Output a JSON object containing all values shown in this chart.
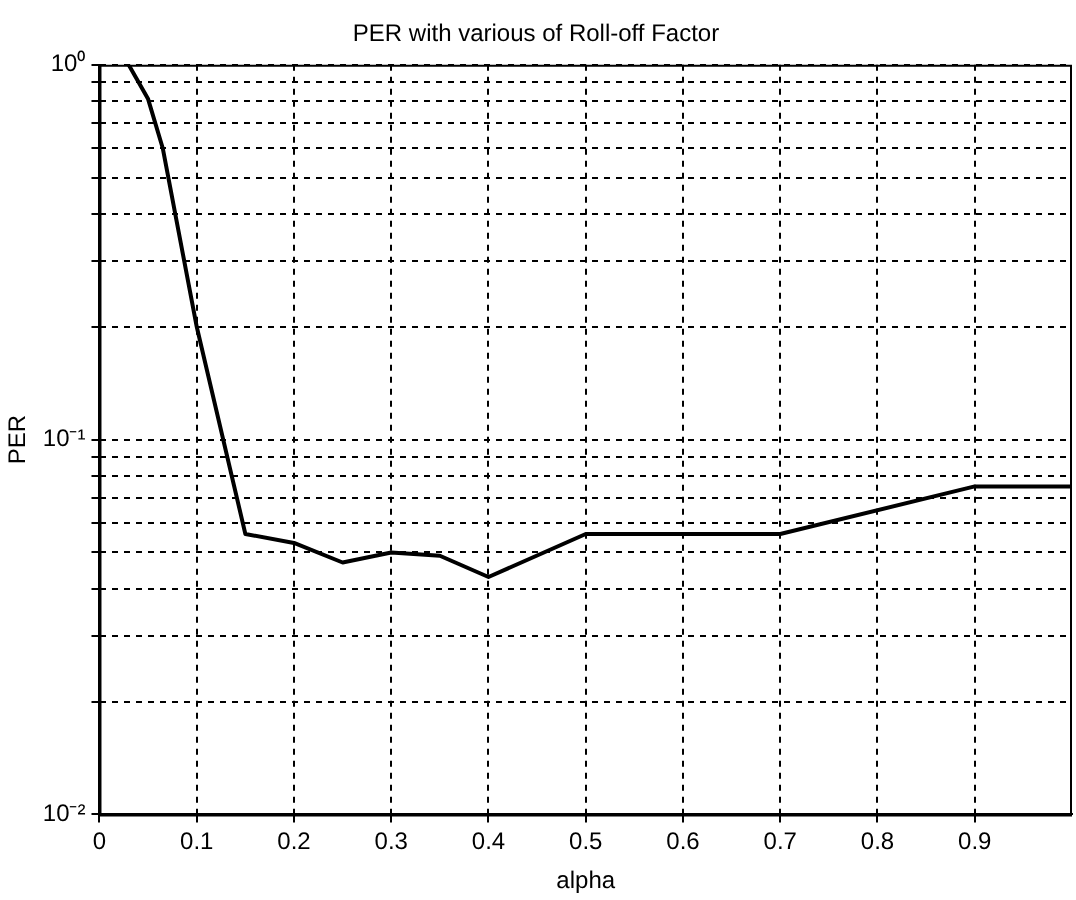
{
  "chart_data": {
    "type": "line",
    "title": "PER with various of Roll-off Factor",
    "xlabel": "alpha",
    "ylabel": "PER",
    "series": [
      {
        "color": "#000000",
        "x": [
          0.03,
          0.05,
          0.065,
          0.1,
          0.15,
          0.2,
          0.25,
          0.3,
          0.35,
          0.4,
          0.5,
          0.7,
          0.9,
          1
        ],
        "values": [
          1,
          0.81,
          0.6,
          0.2,
          0.056,
          0.053,
          0.047,
          0.05,
          0.049,
          0.043,
          0.056,
          0.056,
          0.075,
          0.075
        ]
      }
    ],
    "xlim": [
      0,
      1
    ],
    "xticks": [
      0,
      0.1,
      0.2,
      0.3,
      0.4,
      0.5,
      0.6,
      0.7,
      0.8,
      0.9
    ],
    "ylim": [
      0.01,
      1
    ],
    "log": true,
    "yticks": [
      {
        "value": 0.01,
        "label": "10⁻²"
      },
      {
        "value": 0.02,
        "label": null
      },
      {
        "value": 0.03,
        "label": null
      },
      {
        "value": 0.04,
        "label": null
      },
      {
        "value": 0.05,
        "label": null
      },
      {
        "value": 0.06,
        "label": null
      },
      {
        "value": 0.07,
        "label": null
      },
      {
        "value": 0.08,
        "label": null
      },
      {
        "value": 0.09,
        "label": null
      },
      {
        "value": 0.1,
        "label": "10⁻¹"
      },
      {
        "value": 0.2,
        "label": null
      },
      {
        "value": 0.3,
        "label": null
      },
      {
        "value": 0.4,
        "label": null
      },
      {
        "value": 0.5,
        "label": null
      },
      {
        "value": 0.6,
        "label": null
      },
      {
        "value": 0.7,
        "label": null
      },
      {
        "value": 0.8,
        "label": null
      },
      {
        "value": 0.9,
        "label": null
      },
      {
        "value": 1,
        "label": "10⁰"
      }
    ],
    "grid": true,
    "line_style": "solid",
    "marker": "none",
    "legend": false
  }
}
